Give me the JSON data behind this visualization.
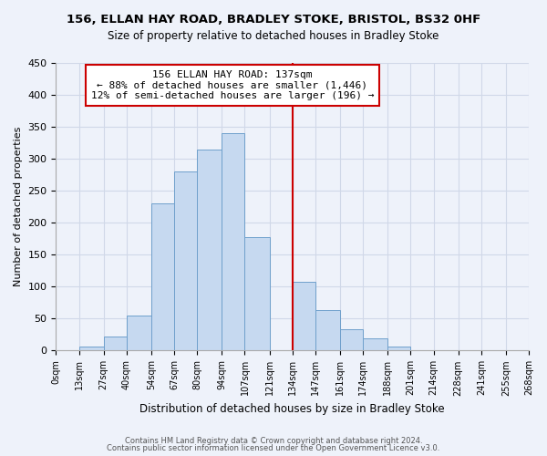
{
  "title_line1": "156, ELLAN HAY ROAD, BRADLEY STOKE, BRISTOL, BS32 0HF",
  "title_line2": "Size of property relative to detached houses in Bradley Stoke",
  "xlabel": "Distribution of detached houses by size in Bradley Stoke",
  "ylabel": "Number of detached properties",
  "bin_edges": [
    0,
    13,
    27,
    40,
    54,
    67,
    80,
    94,
    107,
    121,
    134,
    147,
    161,
    174,
    188,
    201,
    214,
    228,
    241,
    255,
    268
  ],
  "bin_heights": [
    0,
    7,
    22,
    55,
    230,
    280,
    315,
    340,
    177,
    0,
    108,
    63,
    33,
    19,
    7,
    0,
    0,
    0,
    0,
    0
  ],
  "bar_color": "#c6d9f0",
  "bar_edge_color": "#6fa0cc",
  "vline_x": 134,
  "vline_color": "#cc0000",
  "annotation_title": "156 ELLAN HAY ROAD: 137sqm",
  "annotation_line1": "← 88% of detached houses are smaller (1,446)",
  "annotation_line2": "12% of semi-detached houses are larger (196) →",
  "annotation_box_color": "#ffffff",
  "annotation_box_edge": "#cc0000",
  "ylim": [
    0,
    450
  ],
  "yticks": [
    0,
    50,
    100,
    150,
    200,
    250,
    300,
    350,
    400,
    450
  ],
  "tick_labels": [
    "0sqm",
    "13sqm",
    "27sqm",
    "40sqm",
    "54sqm",
    "67sqm",
    "80sqm",
    "94sqm",
    "107sqm",
    "121sqm",
    "134sqm",
    "147sqm",
    "161sqm",
    "174sqm",
    "188sqm",
    "201sqm",
    "214sqm",
    "228sqm",
    "241sqm",
    "255sqm",
    "268sqm"
  ],
  "footnote1": "Contains HM Land Registry data © Crown copyright and database right 2024.",
  "footnote2": "Contains public sector information licensed under the Open Government Licence v3.0.",
  "bg_color": "#eef2fa",
  "grid_color": "#d0d8e8",
  "title_fontsize": 9.5,
  "subtitle_fontsize": 8.5
}
